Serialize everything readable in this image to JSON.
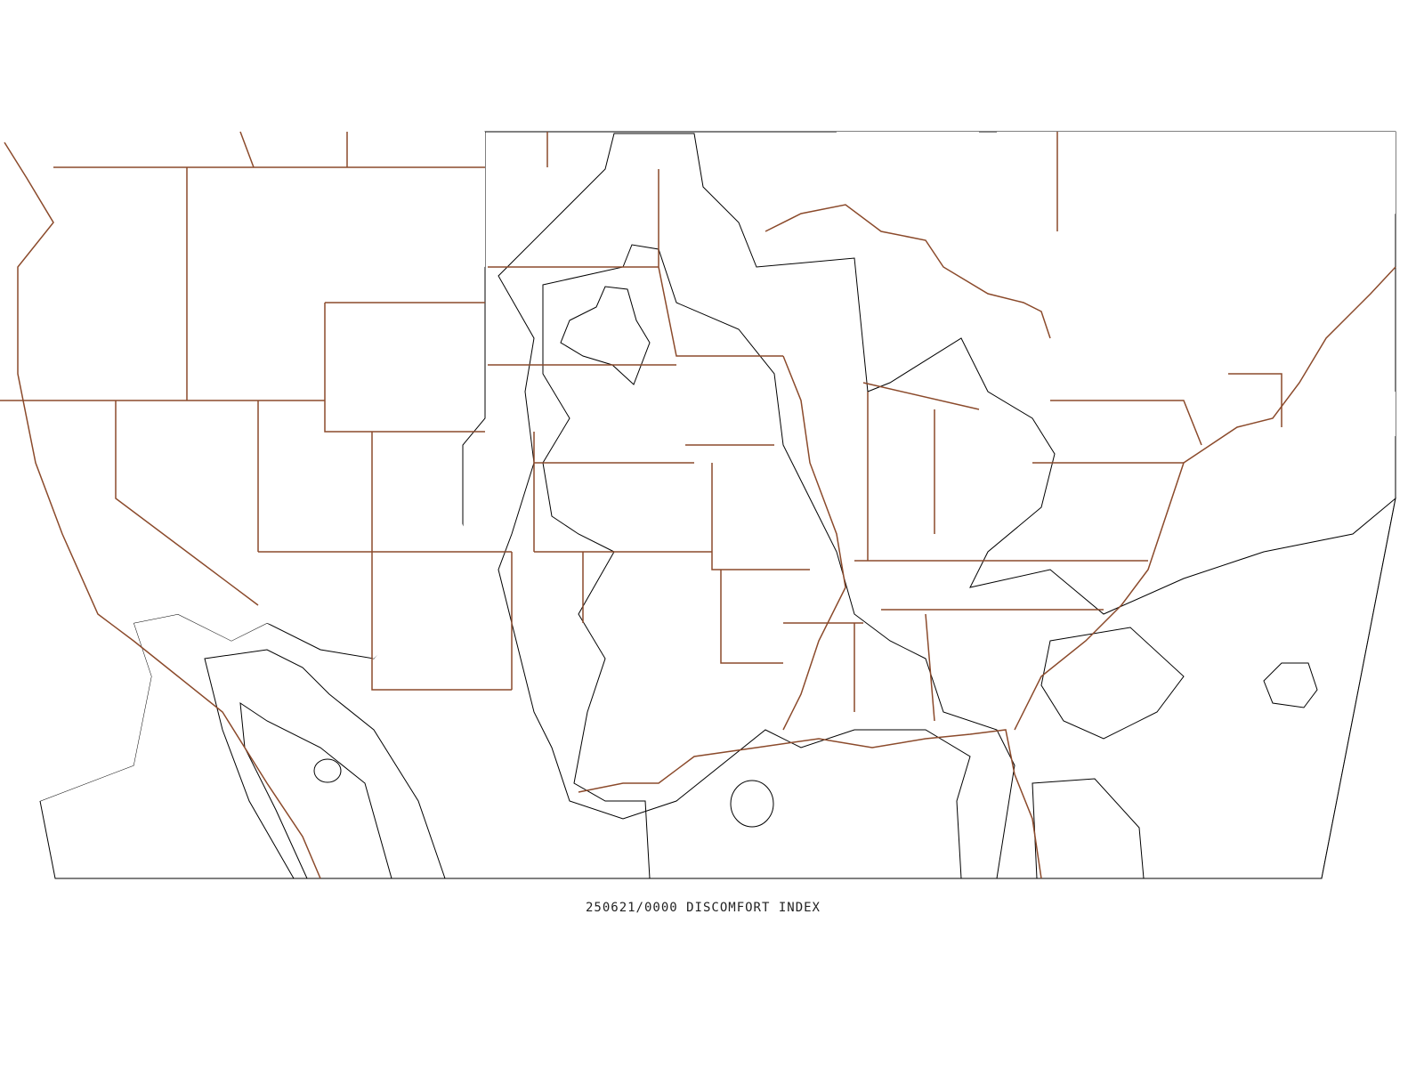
{
  "title": "250621/0000 DISCOMFORT INDEX"
}
